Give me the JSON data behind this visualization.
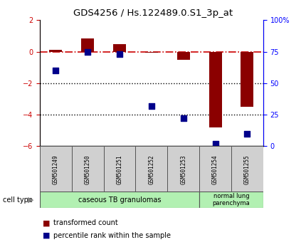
{
  "title": "GDS4256 / Hs.122489.0.S1_3p_at",
  "samples": [
    "GSM501249",
    "GSM501250",
    "GSM501251",
    "GSM501252",
    "GSM501253",
    "GSM501254",
    "GSM501255"
  ],
  "red_values": [
    0.1,
    0.82,
    0.5,
    -0.05,
    -0.5,
    -4.8,
    -3.5
  ],
  "blue_values_pct": [
    60,
    75,
    73,
    32,
    22,
    2,
    10
  ],
  "ylim_left": [
    -6,
    2
  ],
  "ylim_right": [
    0,
    100
  ],
  "yticks_left": [
    -6,
    -4,
    -2,
    0,
    2
  ],
  "yticks_right": [
    0,
    25,
    50,
    75,
    100
  ],
  "ytick_labels_right": [
    "0",
    "25",
    "50",
    "75",
    "100%"
  ],
  "group1_samples": 5,
  "group2_samples": 2,
  "group1_label": "caseous TB granulomas",
  "group2_label": "normal lung\nparenchyma",
  "cell_type_label": "cell type",
  "legend1_label": "transformed count",
  "legend2_label": "percentile rank within the sample",
  "bar_color": "#8B0000",
  "dot_color": "#00008B",
  "group1_color": "#b2f0b2",
  "group2_color": "#b2f0b2",
  "sample_box_color": "#d0d0d0",
  "hline_color": "#CC0000",
  "dotline_color": "#000000",
  "bar_width": 0.4,
  "dot_size": 30
}
